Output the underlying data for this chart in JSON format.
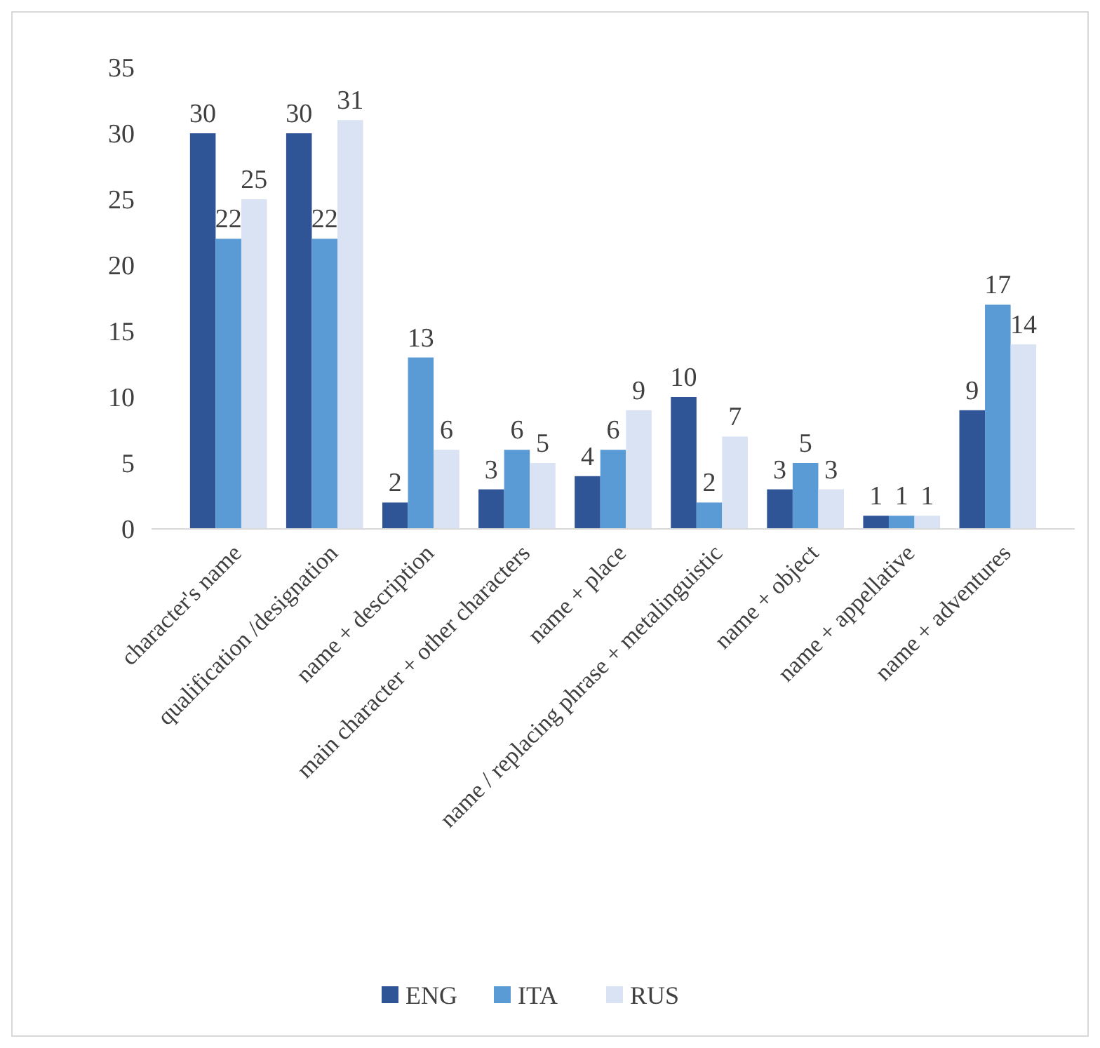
{
  "chart_data": {
    "type": "bar",
    "categories": [
      "character's name",
      "qualification /designation",
      "name + description",
      "main character + other characters",
      "name + place",
      "name / replacing phrase + metalinguistic",
      "name + object",
      "name + appellative",
      "name + adventures"
    ],
    "series": [
      {
        "name": "ENG",
        "color": "#2f5597",
        "values": [
          30,
          30,
          2,
          3,
          4,
          10,
          3,
          1,
          9
        ]
      },
      {
        "name": "ITA",
        "color": "#5b9bd5",
        "values": [
          22,
          22,
          13,
          6,
          6,
          2,
          5,
          1,
          17
        ]
      },
      {
        "name": "RUS",
        "color": "#dae3f3",
        "values": [
          25,
          31,
          6,
          5,
          9,
          7,
          3,
          1,
          14
        ]
      }
    ],
    "ylim": [
      0,
      35
    ],
    "yticks": [
      0,
      5,
      10,
      15,
      20,
      25,
      30,
      35
    ],
    "grid": false,
    "legend": "bottom",
    "data_labels": true
  }
}
